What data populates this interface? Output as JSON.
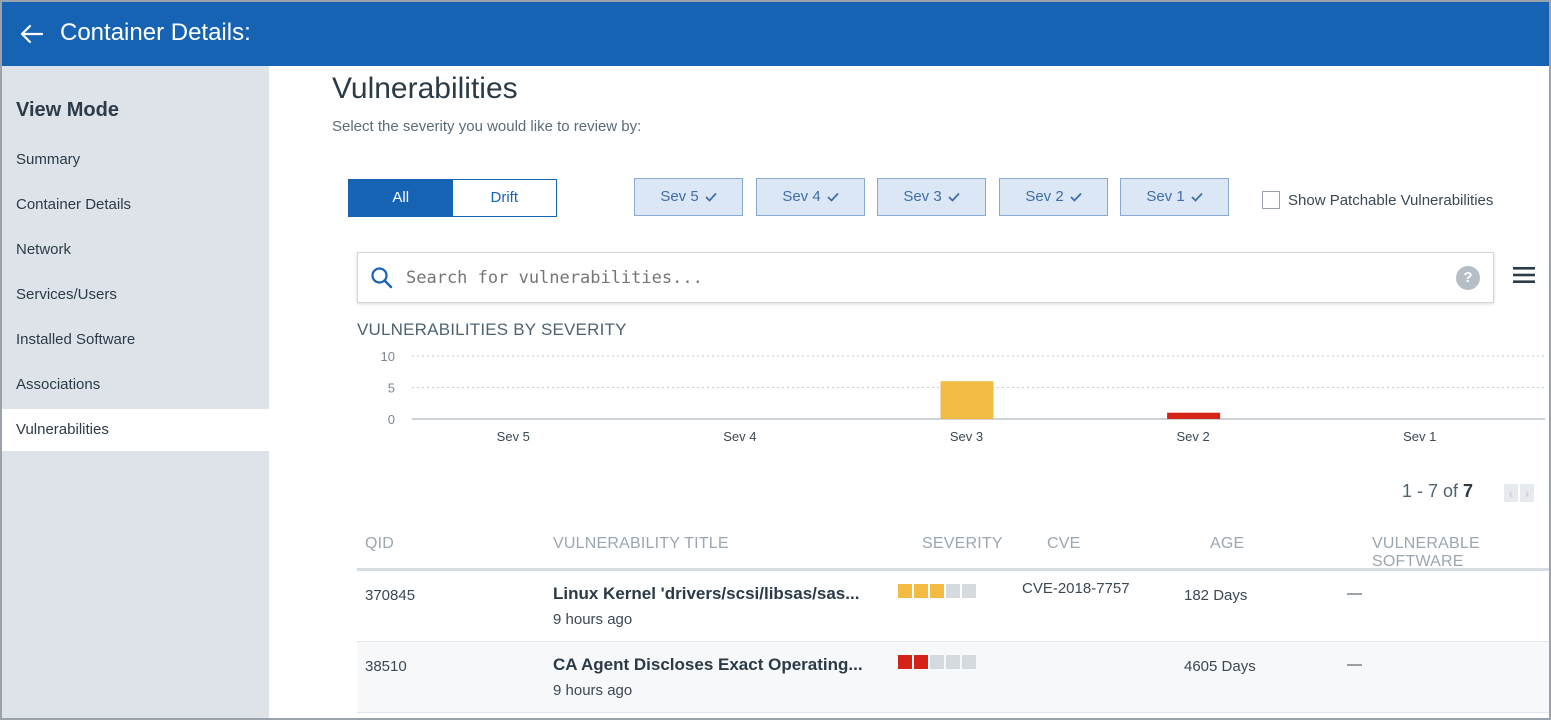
{
  "header": {
    "title": "Container Details:",
    "back_icon": "arrow-left-icon"
  },
  "sidebar": {
    "heading": "View Mode",
    "items": [
      {
        "label": "Summary",
        "active": false
      },
      {
        "label": "Container Details",
        "active": false
      },
      {
        "label": "Network",
        "active": false
      },
      {
        "label": "Services/Users",
        "active": false
      },
      {
        "label": "Installed Software",
        "active": false
      },
      {
        "label": "Associations",
        "active": false
      },
      {
        "label": "Vulnerabilities",
        "active": true
      }
    ]
  },
  "main": {
    "title": "Vulnerabilities",
    "subtitle": "Select the severity you would like to review by:",
    "view_toggle": {
      "all": "All",
      "drift": "Drift",
      "selected": "All"
    },
    "severity_filters": [
      {
        "label": "Sev 5",
        "checked": true
      },
      {
        "label": "Sev 4",
        "checked": true
      },
      {
        "label": "Sev 3",
        "checked": true
      },
      {
        "label": "Sev 2",
        "checked": true
      },
      {
        "label": "Sev 1",
        "checked": true
      }
    ],
    "patchable": {
      "label": "Show Patchable Vulnerabilities",
      "checked": false
    },
    "search": {
      "placeholder": "Search for vulnerabilities...",
      "value": ""
    },
    "pagination": {
      "range": "1 - 7 of",
      "total": "7"
    },
    "table": {
      "headers": [
        "QID",
        "VULNERABILITY TITLE",
        "SEVERITY",
        "CVE",
        "AGE",
        "VULNERABLE SOFTWARE"
      ],
      "rows": [
        {
          "qid": "370845",
          "title": "Linux Kernel 'drivers/scsi/libsas/sas...",
          "time": "9 hours ago",
          "severity": 3,
          "cve": "CVE-2018-7757",
          "age": "182 Days",
          "software": "—"
        },
        {
          "qid": "38510",
          "title": "CA Agent Discloses Exact Operating...",
          "time": "9 hours ago",
          "severity": 2,
          "cve": "",
          "age": "4605 Days",
          "software": "—"
        }
      ]
    }
  },
  "colors": {
    "brand": "#1763b3",
    "sev3": "#f2bc44",
    "sev2": "#d42318",
    "bar_empty": "#d4dade"
  },
  "chart_data": {
    "type": "bar",
    "title": "VULNERABILITIES BY SEVERITY",
    "categories": [
      "Sev 5",
      "Sev 4",
      "Sev 3",
      "Sev 2",
      "Sev 1"
    ],
    "values": [
      0,
      0,
      6,
      1,
      0
    ],
    "colors": [
      "#f2bc44",
      "#f2bc44",
      "#f2bc44",
      "#d42318",
      "#d42318"
    ],
    "yticks": [
      0,
      5,
      10
    ],
    "ylim": [
      0,
      10
    ],
    "grid": true
  }
}
